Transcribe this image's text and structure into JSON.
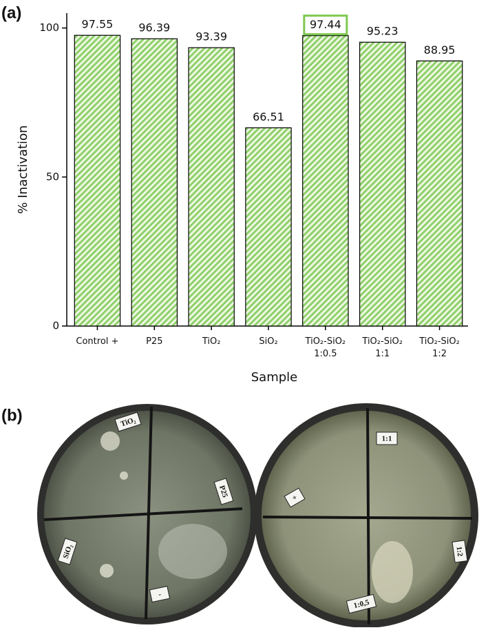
{
  "chart_data": {
    "type": "bar",
    "panel_label": "(a)",
    "x_label": "Sample",
    "y_label": "% Inactivation",
    "categories": [
      "Control +",
      "P25",
      "TiO₂",
      "SiO₂",
      "TiO₂-SiO₂\n1:0.5",
      "TiO₂-SiO₂\n1:1",
      "TiO₂-SiO₂\n1:2"
    ],
    "values": [
      97.55,
      96.39,
      93.39,
      66.51,
      97.44,
      95.23,
      88.95
    ],
    "color": "#8fd06a",
    "ylim": [
      0,
      105
    ],
    "yticks": [
      0,
      50,
      100
    ],
    "grid": false
  },
  "photo": {
    "panel_label": "(b)",
    "left_dish": [
      "TiO₂",
      "P25",
      "SiO₂",
      "-"
    ],
    "right_dish": [
      "+",
      "1:1",
      "1:2",
      "1:0,5"
    ]
  }
}
